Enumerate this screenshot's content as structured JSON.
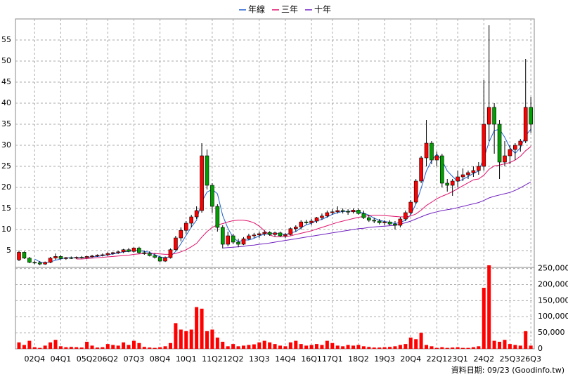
{
  "chart_data": {
    "type": "candlestick",
    "categories": [
      null,
      null,
      null,
      "02Q4",
      null,
      null,
      null,
      null,
      "04Q1",
      null,
      null,
      null,
      null,
      "05Q2",
      null,
      null,
      null,
      "06Q2",
      null,
      null,
      null,
      null,
      "07Q3",
      null,
      null,
      null,
      null,
      "08Q4",
      null,
      null,
      null,
      null,
      "10Q1",
      null,
      null,
      null,
      null,
      "11Q2",
      null,
      null,
      null,
      "12Q2",
      null,
      null,
      null,
      null,
      "13Q3",
      null,
      null,
      null,
      null,
      "14Q4",
      null,
      null,
      null,
      null,
      "16Q1",
      null,
      null,
      null,
      "17Q1",
      null,
      null,
      null,
      null,
      "18Q2",
      null,
      null,
      null,
      null,
      "19Q3",
      null,
      null,
      null,
      null,
      "20Q4",
      null,
      null,
      null,
      null,
      "22Q1",
      null,
      null,
      null,
      "23Q1",
      null,
      null,
      null,
      null,
      "24Q2",
      null,
      null,
      null,
      null,
      "25Q3",
      null,
      null,
      null,
      "26Q3"
    ],
    "ohlc": [
      [
        2.8,
        5,
        2.5,
        4.6
      ],
      [
        4.6,
        4.8,
        3,
        3.2
      ],
      [
        3.2,
        3.5,
        2,
        2.2
      ],
      [
        2.2,
        2.6,
        1.8,
        2.1
      ],
      [
        2.1,
        2.5,
        1.5,
        1.8
      ],
      [
        1.8,
        2.4,
        1.6,
        2.2
      ],
      [
        2.2,
        3.5,
        2,
        3.2
      ],
      [
        3.2,
        4.3,
        2.8,
        3.6
      ],
      [
        3.6,
        3.9,
        2.9,
        3.1
      ],
      [
        3.1,
        3.5,
        2.8,
        3.3
      ],
      [
        3.3,
        3.6,
        3,
        3.2
      ],
      [
        3.2,
        3.6,
        3,
        3.4
      ],
      [
        3.4,
        3.7,
        3.1,
        3.3
      ],
      [
        3.3,
        3.7,
        3.1,
        3.6
      ],
      [
        3.6,
        4,
        3.3,
        3.7
      ],
      [
        3.7,
        4.1,
        3.5,
        3.9
      ],
      [
        3.9,
        4.3,
        3.6,
        4
      ],
      [
        4,
        4.6,
        3.7,
        4.3
      ],
      [
        4.3,
        4.7,
        4,
        4.5
      ],
      [
        4.5,
        4.9,
        4.2,
        4.7
      ],
      [
        4.7,
        5.4,
        4.4,
        5.2
      ],
      [
        5.2,
        5.6,
        4.6,
        4.8
      ],
      [
        4.8,
        5.8,
        4.5,
        5.6
      ],
      [
        5.6,
        5.9,
        4.2,
        4.5
      ],
      [
        4.5,
        5,
        4,
        4.3
      ],
      [
        4.3,
        4.8,
        3.6,
        3.8
      ],
      [
        3.8,
        4.4,
        3.1,
        3.4
      ],
      [
        3.4,
        3.7,
        2.2,
        2.5
      ],
      [
        2.5,
        3.6,
        2.3,
        3.3
      ],
      [
        3.3,
        5.5,
        3.1,
        5.2
      ],
      [
        5.2,
        8.5,
        5,
        8
      ],
      [
        8,
        10.5,
        7.2,
        9.8
      ],
      [
        9.8,
        12,
        9,
        11.5
      ],
      [
        11.5,
        13.5,
        10.5,
        13
      ],
      [
        13,
        15.5,
        12.5,
        14.5
      ],
      [
        14.5,
        30.5,
        14,
        27.5
      ],
      [
        27.5,
        29,
        19.5,
        20.5
      ],
      [
        20.5,
        21,
        14,
        15.5
      ],
      [
        15.5,
        16,
        9.5,
        10.5
      ],
      [
        10.5,
        11,
        5.5,
        6.5
      ],
      [
        6.5,
        9.5,
        6,
        8.5
      ],
      [
        8.5,
        9,
        6.5,
        7
      ],
      [
        7,
        7.8,
        5.8,
        6.5
      ],
      [
        6.5,
        8.2,
        6.3,
        7.8
      ],
      [
        7.8,
        9,
        7.5,
        8.5
      ],
      [
        8.5,
        9.2,
        8,
        8.7
      ],
      [
        8.7,
        9.5,
        8,
        9
      ],
      [
        9,
        9.8,
        8.5,
        9.3
      ],
      [
        9.3,
        9.6,
        8.5,
        8.8
      ],
      [
        8.8,
        9.5,
        8.3,
        9.2
      ],
      [
        9.2,
        9.5,
        8.2,
        8.5
      ],
      [
        8.5,
        9.2,
        8,
        8.8
      ],
      [
        8.8,
        10.5,
        8.6,
        10.2
      ],
      [
        10.2,
        11,
        9.5,
        10.6
      ],
      [
        10.6,
        12.2,
        10,
        11.8
      ],
      [
        11.8,
        12.3,
        11.2,
        11.6
      ],
      [
        11.6,
        12.5,
        11,
        12
      ],
      [
        12,
        13,
        11.5,
        12.8
      ],
      [
        12.8,
        13.8,
        12.3,
        13.2
      ],
      [
        13.2,
        14.5,
        12.8,
        14
      ],
      [
        14,
        14.8,
        13.5,
        14.2
      ],
      [
        14.2,
        15.5,
        13.8,
        14.5
      ],
      [
        14.5,
        15,
        13.8,
        14.3
      ],
      [
        14.3,
        14.8,
        13.5,
        14.2
      ],
      [
        14.2,
        15,
        13.8,
        14.6
      ],
      [
        14.6,
        15,
        13.5,
        13.8
      ],
      [
        13.8,
        14.5,
        12.5,
        12.8
      ],
      [
        12.8,
        13.5,
        11.8,
        12.2
      ],
      [
        12.2,
        12.8,
        11.5,
        12
      ],
      [
        12,
        12.5,
        11.2,
        11.6
      ],
      [
        11.6,
        12.2,
        11,
        11.8
      ],
      [
        11.8,
        12.2,
        11,
        11.3
      ],
      [
        11.3,
        12,
        10,
        11
      ],
      [
        11,
        13,
        10.5,
        12.5
      ],
      [
        12.5,
        14.5,
        12,
        14
      ],
      [
        14,
        17,
        13.5,
        16.5
      ],
      [
        16.5,
        22,
        16,
        21.5
      ],
      [
        21.5,
        27.5,
        21,
        27
      ],
      [
        27,
        36,
        25,
        30.5
      ],
      [
        30.5,
        31,
        25.5,
        26.5
      ],
      [
        26.5,
        28.5,
        25,
        27.5
      ],
      [
        27.5,
        28,
        20,
        21
      ],
      [
        21,
        22,
        19,
        20.5
      ],
      [
        20.5,
        22,
        18,
        21.5
      ],
      [
        21.5,
        24,
        20,
        22.5
      ],
      [
        22.5,
        24.5,
        21.5,
        23
      ],
      [
        23,
        24,
        22,
        23.5
      ],
      [
        23.5,
        25,
        22.5,
        24
      ],
      [
        24,
        26,
        23,
        25
      ],
      [
        25,
        45.5,
        24,
        35
      ],
      [
        35,
        58.5,
        31,
        39
      ],
      [
        39,
        40,
        28,
        35
      ],
      [
        35,
        36,
        22,
        26
      ],
      [
        26,
        31,
        25,
        27.5
      ],
      [
        27.5,
        30,
        25.5,
        29
      ],
      [
        29,
        30.5,
        26.5,
        30
      ],
      [
        30,
        31.5,
        28.5,
        31
      ],
      [
        31,
        50.5,
        30.5,
        39
      ],
      [
        39,
        41.5,
        33,
        35
      ]
    ],
    "up_color": "#ff0000",
    "down_color": "#00a000",
    "series": [
      {
        "name": "年線",
        "color": "#1f5fd0",
        "values": [
          null,
          null,
          null,
          3.0,
          2.3,
          2.1,
          2.3,
          2.7,
          3.0,
          3.3,
          3.3,
          3.3,
          3.3,
          3.4,
          3.5,
          3.6,
          3.8,
          4.0,
          4.2,
          4.4,
          4.7,
          4.8,
          5.1,
          5.0,
          4.8,
          4.6,
          4.0,
          3.5,
          3.3,
          3.6,
          4.8,
          6.6,
          8.6,
          10.6,
          12.2,
          16.6,
          18.9,
          19.5,
          18.5,
          13.3,
          10.3,
          8.1,
          7.1,
          7.5,
          7.5,
          7.9,
          8.5,
          8.9,
          9.0,
          9.1,
          9.0,
          8.8,
          9.2,
          9.5,
          10.4,
          11.1,
          11.5,
          12.1,
          12.4,
          13.0,
          13.6,
          14.0,
          14.3,
          14.3,
          14.4,
          14.2,
          13.9,
          13.4,
          12.7,
          12.2,
          11.9,
          11.7,
          11.4,
          11.7,
          12.2,
          13.5,
          16.1,
          19.8,
          23.9,
          26.4,
          27.9,
          26.4,
          23.9,
          22.6,
          21.4,
          21.9,
          22.6,
          23.3,
          23.9,
          26.9,
          30.8,
          33.5,
          33.8,
          31.9,
          29.4,
          28.1,
          29.4,
          32.3,
          33.8
        ]
      },
      {
        "name": "三年",
        "color": "#e0106a",
        "values": [
          null,
          null,
          null,
          null,
          null,
          null,
          null,
          null,
          null,
          null,
          null,
          3.0,
          3.0,
          3.1,
          3.2,
          3.3,
          3.4,
          3.5,
          3.6,
          3.7,
          3.8,
          3.9,
          4.1,
          4.2,
          4.3,
          4.3,
          4.3,
          4.2,
          4.1,
          4.1,
          4.3,
          4.7,
          5.2,
          5.9,
          6.7,
          8.2,
          9.5,
          10.5,
          11.1,
          11.4,
          11.8,
          12.1,
          12.2,
          12.2,
          12.0,
          11.6,
          10.8,
          9.7,
          8.7,
          8.3,
          8.3,
          8.3,
          8.5,
          8.8,
          9.1,
          9.4,
          9.7,
          10.1,
          10.5,
          10.9,
          11.3,
          11.7,
          12.0,
          12.3,
          12.6,
          12.9,
          13.1,
          13.3,
          13.4,
          13.4,
          13.3,
          13.2,
          13.1,
          13.0,
          13.0,
          13.2,
          13.7,
          14.6,
          15.7,
          16.5,
          17.3,
          17.9,
          18.4,
          19.0,
          19.7,
          20.4,
          21.1,
          21.8,
          22.0,
          22.9,
          24.3,
          25.1,
          25.3,
          25.6,
          25.9,
          26.5,
          27.4,
          28.7,
          29.7
        ]
      },
      {
        "name": "十年",
        "color": "#7020c0",
        "values": [
          null,
          null,
          null,
          null,
          null,
          null,
          null,
          null,
          null,
          null,
          null,
          null,
          null,
          null,
          null,
          null,
          null,
          null,
          null,
          null,
          null,
          null,
          null,
          null,
          null,
          null,
          null,
          null,
          null,
          null,
          null,
          null,
          null,
          null,
          null,
          null,
          null,
          null,
          null,
          5.6,
          5.7,
          5.8,
          5.9,
          6.0,
          6.2,
          6.3,
          6.5,
          6.6,
          6.8,
          7.0,
          7.2,
          7.4,
          7.6,
          7.8,
          8.0,
          8.2,
          8.4,
          8.6,
          8.8,
          9.0,
          9.2,
          9.4,
          9.6,
          9.8,
          10.0,
          10.2,
          10.3,
          10.5,
          10.6,
          10.7,
          10.8,
          10.9,
          11.0,
          11.3,
          11.6,
          12.0,
          12.5,
          13.0,
          13.5,
          13.9,
          14.2,
          14.5,
          14.7,
          14.9,
          15.2,
          15.5,
          15.8,
          16.1,
          16.4,
          16.9,
          17.5,
          17.9,
          18.2,
          18.5,
          18.8,
          19.3,
          19.9,
          20.6,
          21.3
        ]
      }
    ],
    "volume": {
      "axis": "y2",
      "color": "#ff0000",
      "values": [
        20000,
        12000,
        25000,
        5000,
        3000,
        10000,
        20000,
        28000,
        8000,
        5000,
        6000,
        5000,
        4000,
        22000,
        10000,
        4000,
        5000,
        15000,
        12000,
        10000,
        20000,
        12000,
        25000,
        18000,
        6000,
        4000,
        3000,
        5000,
        8000,
        18000,
        80000,
        60000,
        55000,
        60000,
        130000,
        125000,
        55000,
        60000,
        35000,
        22000,
        8000,
        15000,
        8000,
        10000,
        12000,
        14000,
        20000,
        25000,
        20000,
        15000,
        10000,
        8000,
        20000,
        25000,
        15000,
        10000,
        12000,
        15000,
        12000,
        25000,
        18000,
        10000,
        8000,
        12000,
        10000,
        12000,
        8000,
        6000,
        4000,
        4000,
        5000,
        6000,
        8000,
        12000,
        15000,
        35000,
        30000,
        50000,
        12000,
        8000,
        3000,
        5000,
        3000,
        4000,
        5000,
        3000,
        3000,
        5000,
        8000,
        190000,
        260000,
        25000,
        22000,
        28000,
        15000,
        12000,
        10000,
        55000,
        10000
      ]
    },
    "ylim": [
      1,
      60
    ],
    "yticks": [
      5,
      10,
      15,
      20,
      25,
      30,
      35,
      40,
      45,
      50,
      55
    ],
    "y2lim": [
      0,
      260000
    ],
    "y2ticks": [
      0,
      {
        "value": 50000,
        "label": "50,000"
      },
      {
        "value": 100000,
        "label": "100,000"
      },
      {
        "value": 150000,
        "label": "150,000"
      },
      {
        "value": 200000,
        "label": "200,000"
      },
      {
        "value": 250000,
        "label": "250,000"
      }
    ],
    "grid": true,
    "legend": "top",
    "footer": "資料日期: 09/23 (Goodinfo.tw)"
  }
}
